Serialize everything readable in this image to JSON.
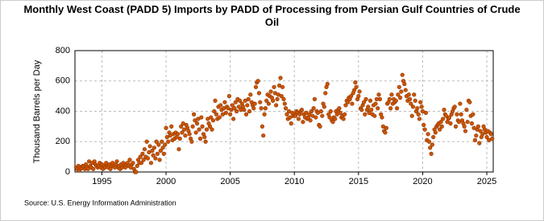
{
  "chart_data": {
    "type": "scatter",
    "title": "Monthly West Coast (PADD 5) Imports by PADD of Processing from Persian Gulf Countries of Crude Oil",
    "ylabel": "Thousand Barrels per Day",
    "source": "Source: U.S. Energy Information Administration",
    "color": "#cc5500",
    "grid": true,
    "xlim": [
      1992.9,
      2025.5
    ],
    "xticks": [
      1995,
      2000,
      2005,
      2010,
      2015,
      2020,
      2025
    ],
    "ylim": [
      0,
      800
    ],
    "yticks": [
      0,
      200,
      400,
      600,
      800
    ],
    "x": [
      1993,
      1993.08,
      1993.17,
      1993.25,
      1993.33,
      1993.42,
      1993.5,
      1993.58,
      1993.67,
      1993.75,
      1993.83,
      1993.92,
      1994,
      1994.08,
      1994.17,
      1994.25,
      1994.33,
      1994.42,
      1994.5,
      1994.58,
      1994.67,
      1994.75,
      1994.83,
      1994.92,
      1995,
      1995.08,
      1995.17,
      1995.25,
      1995.33,
      1995.42,
      1995.5,
      1995.58,
      1995.67,
      1995.75,
      1995.83,
      1995.92,
      1996,
      1996.08,
      1996.17,
      1996.25,
      1996.33,
      1996.42,
      1996.5,
      1996.58,
      1996.67,
      1996.75,
      1996.83,
      1996.92,
      1997,
      1997.08,
      1997.17,
      1997.25,
      1997.33,
      1997.42,
      1997.5,
      1997.58,
      1997.67,
      1997.75,
      1997.83,
      1997.92,
      1998,
      1998.08,
      1998.17,
      1998.25,
      1998.33,
      1998.42,
      1998.5,
      1998.58,
      1998.67,
      1998.75,
      1998.83,
      1998.92,
      1999,
      1999.08,
      1999.17,
      1999.25,
      1999.33,
      1999.42,
      1999.5,
      1999.58,
      1999.67,
      1999.75,
      1999.83,
      1999.92,
      2000,
      2000.08,
      2000.17,
      2000.25,
      2000.33,
      2000.42,
      2000.5,
      2000.58,
      2000.67,
      2000.75,
      2000.83,
      2000.92,
      2001,
      2001.08,
      2001.17,
      2001.25,
      2001.33,
      2001.42,
      2001.5,
      2001.58,
      2001.67,
      2001.75,
      2001.83,
      2001.92,
      2002,
      2002.08,
      2002.17,
      2002.25,
      2002.33,
      2002.42,
      2002.5,
      2002.58,
      2002.67,
      2002.75,
      2002.83,
      2002.92,
      2003,
      2003.08,
      2003.17,
      2003.25,
      2003.33,
      2003.42,
      2003.5,
      2003.58,
      2003.67,
      2003.75,
      2003.83,
      2003.92,
      2004,
      2004.08,
      2004.17,
      2004.25,
      2004.33,
      2004.42,
      2004.5,
      2004.58,
      2004.67,
      2004.75,
      2004.83,
      2004.92,
      2005,
      2005.08,
      2005.17,
      2005.25,
      2005.33,
      2005.42,
      2005.5,
      2005.58,
      2005.67,
      2005.75,
      2005.83,
      2005.92,
      2006,
      2006.08,
      2006.17,
      2006.25,
      2006.33,
      2006.42,
      2006.5,
      2006.58,
      2006.67,
      2006.75,
      2006.83,
      2006.92,
      2007,
      2007.08,
      2007.17,
      2007.25,
      2007.33,
      2007.42,
      2007.5,
      2007.58,
      2007.67,
      2007.75,
      2007.83,
      2007.92,
      2008,
      2008.08,
      2008.17,
      2008.25,
      2008.33,
      2008.42,
      2008.5,
      2008.58,
      2008.67,
      2008.75,
      2008.83,
      2008.92,
      2009,
      2009.08,
      2009.17,
      2009.25,
      2009.33,
      2009.42,
      2009.5,
      2009.58,
      2009.67,
      2009.75,
      2009.83,
      2009.92,
      2010,
      2010.08,
      2010.17,
      2010.25,
      2010.33,
      2010.42,
      2010.5,
      2010.58,
      2010.67,
      2010.75,
      2010.83,
      2010.92,
      2011,
      2011.08,
      2011.17,
      2011.25,
      2011.33,
      2011.42,
      2011.5,
      2011.58,
      2011.67,
      2011.75,
      2011.83,
      2011.92,
      2012,
      2012.08,
      2012.17,
      2012.25,
      2012.33,
      2012.42,
      2012.5,
      2012.58,
      2012.67,
      2012.75,
      2012.83,
      2012.92,
      2013,
      2013.08,
      2013.17,
      2013.25,
      2013.33,
      2013.42,
      2013.5,
      2013.58,
      2013.67,
      2013.75,
      2013.83,
      2013.92,
      2014,
      2014.08,
      2014.17,
      2014.25,
      2014.33,
      2014.42,
      2014.5,
      2014.58,
      2014.67,
      2014.75,
      2014.83,
      2014.92,
      2015,
      2015.08,
      2015.17,
      2015.25,
      2015.33,
      2015.42,
      2015.5,
      2015.58,
      2015.67,
      2015.75,
      2015.83,
      2015.92,
      2016,
      2016.08,
      2016.17,
      2016.25,
      2016.33,
      2016.42,
      2016.5,
      2016.58,
      2016.67,
      2016.75,
      2016.83,
      2016.92,
      2017,
      2017.08,
      2017.17,
      2017.25,
      2017.33,
      2017.42,
      2017.5,
      2017.58,
      2017.67,
      2017.75,
      2017.83,
      2017.92,
      2018,
      2018.08,
      2018.17,
      2018.25,
      2018.33,
      2018.42,
      2018.5,
      2018.58,
      2018.67,
      2018.75,
      2018.83,
      2018.92,
      2019,
      2019.08,
      2019.17,
      2019.25,
      2019.33,
      2019.42,
      2019.5,
      2019.58,
      2019.67,
      2019.75,
      2019.83,
      2019.92,
      2020,
      2020.08,
      2020.17,
      2020.25,
      2020.33,
      2020.42,
      2020.5,
      2020.58,
      2020.67,
      2020.75,
      2020.83,
      2020.92,
      2021,
      2021.08,
      2021.17,
      2021.25,
      2021.33,
      2021.42,
      2021.5,
      2021.58,
      2021.67,
      2021.75,
      2021.83,
      2021.92,
      2022,
      2022.08,
      2022.17,
      2022.25,
      2022.33,
      2022.42,
      2022.5,
      2022.58,
      2022.67,
      2022.75,
      2022.83,
      2022.92,
      2023,
      2023.08,
      2023.17,
      2023.25,
      2023.33,
      2023.42,
      2023.5,
      2023.58,
      2023.67,
      2023.75,
      2023.83,
      2023.92,
      2024,
      2024.08,
      2024.17,
      2024.25,
      2024.33,
      2024.42,
      2024.5,
      2024.58,
      2024.67,
      2024.75,
      2024.83,
      2024.92,
      2025,
      2025.08,
      2025.17,
      2025.25,
      2025.33,
      2025.42
    ],
    "values": [
      30,
      20,
      40,
      10,
      30,
      25,
      40,
      35,
      20,
      50,
      30,
      20,
      70,
      40,
      30,
      60,
      20,
      70,
      50,
      40,
      30,
      40,
      60,
      30,
      50,
      20,
      40,
      30,
      60,
      40,
      30,
      50,
      20,
      40,
      60,
      40,
      30,
      50,
      70,
      30,
      40,
      20,
      50,
      30,
      60,
      40,
      30,
      50,
      60,
      40,
      80,
      30,
      50,
      60,
      20,
      0,
      0,
      40,
      80,
      60,
      100,
      60,
      120,
      80,
      150,
      100,
      200,
      90,
      130,
      170,
      60,
      140,
      110,
      160,
      90,
      200,
      120,
      180,
      80,
      140,
      200,
      160,
      120,
      180,
      290,
      230,
      200,
      260,
      240,
      300,
      210,
      250,
      220,
      260,
      230,
      250,
      150,
      220,
      300,
      260,
      320,
      280,
      240,
      310,
      290,
      270,
      250,
      220,
      200,
      300,
      380,
      340,
      260,
      320,
      350,
      280,
      220,
      360,
      300,
      250,
      230,
      200,
      280,
      350,
      320,
      300,
      360,
      280,
      340,
      400,
      470,
      380,
      350,
      430,
      360,
      440,
      410,
      380,
      420,
      460,
      390,
      430,
      420,
      500,
      380,
      410,
      440,
      350,
      420,
      460,
      400,
      480,
      430,
      470,
      410,
      450,
      430,
      410,
      470,
      380,
      440,
      480,
      400,
      510,
      460,
      440,
      420,
      450,
      560,
      590,
      600,
      520,
      460,
      420,
      300,
      240,
      380,
      420,
      470,
      510,
      450,
      500,
      530,
      490,
      470,
      560,
      520,
      440,
      480,
      510,
      570,
      620,
      500,
      560,
      480,
      450,
      420,
      380,
      350,
      400,
      360,
      320,
      390,
      370,
      380,
      370,
      400,
      390,
      350,
      380,
      400,
      410,
      330,
      380,
      360,
      390,
      350,
      360,
      380,
      340,
      400,
      370,
      420,
      480,
      360,
      400,
      390,
      310,
      300,
      400,
      370,
      450,
      430,
      520,
      560,
      580,
      380,
      360,
      400,
      340,
      330,
      360,
      350,
      400,
      380,
      410,
      420,
      390,
      360,
      370,
      350,
      380,
      440,
      470,
      460,
      490,
      480,
      500,
      450,
      520,
      540,
      590,
      560,
      480,
      500,
      530,
      420,
      410,
      440,
      460,
      380,
      480,
      410,
      430,
      390,
      470,
      410,
      380,
      440,
      370,
      450,
      480,
      420,
      510,
      480,
      380,
      360,
      300,
      270,
      260,
      290,
      450,
      460,
      480,
      420,
      510,
      450,
      480,
      460,
      470,
      420,
      510,
      560,
      490,
      530,
      640,
      600,
      580,
      540,
      500,
      470,
      510,
      480,
      450,
      370,
      430,
      510,
      470,
      400,
      420,
      380,
      350,
      460,
      430,
      400,
      310,
      280,
      390,
      210,
      250,
      200,
      160,
      120,
      180,
      230,
      280,
      260,
      300,
      310,
      320,
      280,
      330,
      300,
      350,
      410,
      380,
      370,
      330,
      350,
      360,
      320,
      380,
      400,
      420,
      430,
      300,
      380,
      340,
      330,
      450,
      380,
      340,
      320,
      300,
      270,
      410,
      330,
      470,
      460,
      370,
      320,
      380,
      290,
      210,
      240,
      280,
      300,
      190,
      270,
      230,
      250,
      300,
      280,
      260,
      230,
      270,
      210,
      260,
      250,
      220
    ]
  }
}
